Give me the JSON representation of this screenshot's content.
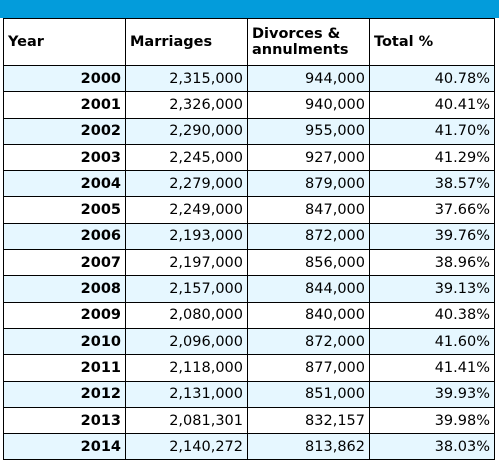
{
  "table": {
    "headers": [
      "Year",
      "Marriages",
      "Divorces &\nannulments",
      "Total %"
    ],
    "rows": [
      [
        "2000",
        "2,315,000",
        "944,000",
        "40.78%"
      ],
      [
        "2001",
        "2,326,000",
        "940,000",
        "40.41%"
      ],
      [
        "2002",
        "2,290,000",
        "955,000",
        "41.70%"
      ],
      [
        "2003",
        "2,245,000",
        "927,000",
        "41.29%"
      ],
      [
        "2004",
        "2,279,000",
        "879,000",
        "38.57%"
      ],
      [
        "2005",
        "2,249,000",
        "847,000",
        "37.66%"
      ],
      [
        "2006",
        "2,193,000",
        "872,000",
        "39.76%"
      ],
      [
        "2007",
        "2,197,000",
        "856,000",
        "38.96%"
      ],
      [
        "2008",
        "2,157,000",
        "844,000",
        "39.13%"
      ],
      [
        "2009",
        "2,080,000",
        "840,000",
        "40.38%"
      ],
      [
        "2010",
        "2,096,000",
        "872,000",
        "41.60%"
      ],
      [
        "2011",
        "2,118,000",
        "877,000",
        "41.41%"
      ],
      [
        "2012",
        "2,131,000",
        "851,000",
        "39.93%"
      ],
      [
        "2013",
        "2,081,301",
        "832,157",
        "39.98%"
      ],
      [
        "2014",
        "2,140,272",
        "813,862",
        "38.03%"
      ]
    ]
  },
  "colors": {
    "top_bar": "#039cdb",
    "row_alt": "#e6f7ff",
    "row_plain": "#ffffff",
    "border": "#000000"
  }
}
